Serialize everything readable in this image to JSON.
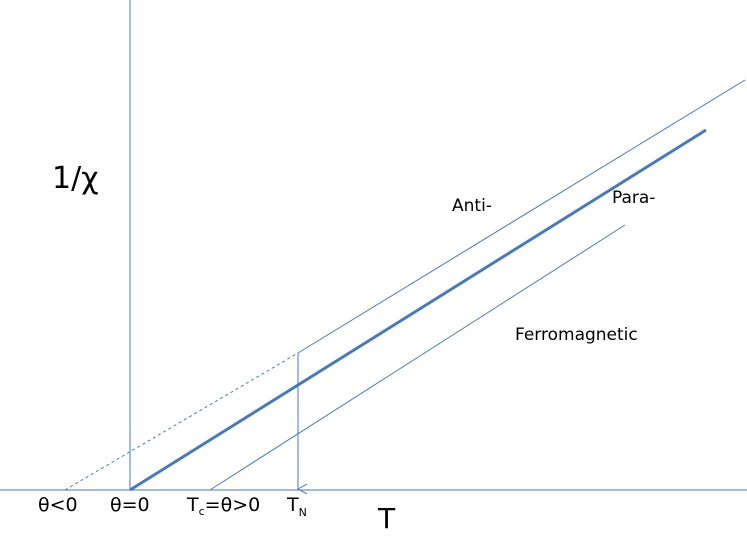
{
  "axes": {
    "y_label": "1/χ",
    "x_label": "T"
  },
  "curves": {
    "anti": "Anti-",
    "para": "Para-",
    "ferro": "Ferromagnetic"
  },
  "x_markers": {
    "theta_negative": "θ<0",
    "theta_zero": "θ=0",
    "curie": {
      "main": "T",
      "sub": "c",
      "rest": "=θ>0"
    },
    "neel": {
      "main": "T",
      "sub": "N"
    }
  }
}
